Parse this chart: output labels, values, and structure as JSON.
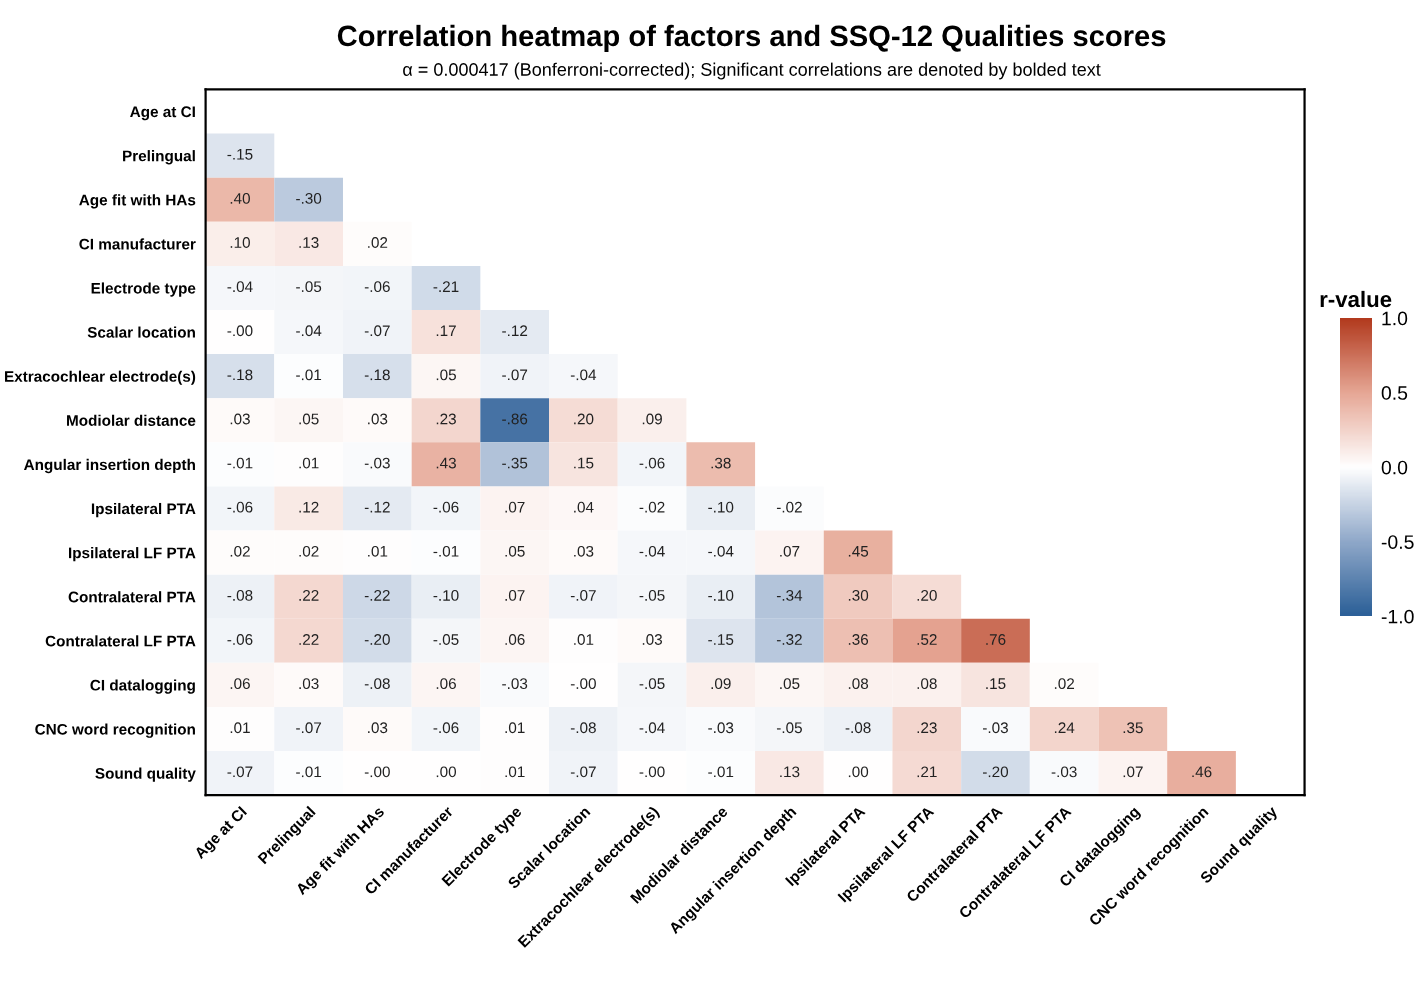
{
  "chart_data": {
    "type": "heatmap",
    "title": "Correlation heatmap of factors and SSQ-12 Qualities scores",
    "subtitle": "α = 0.000417 (Bonferroni-corrected); Significant correlations are denoted by bolded text",
    "clabel": "r-value",
    "categories": [
      "Age at CI",
      "Prelingual",
      "Age fit with HAs",
      "CI manufacturer",
      "Electrode type",
      "Scalar location",
      "Extracochlear electrode(s)",
      "Modiolar distance",
      "Angular insertion depth",
      "Ipsilateral PTA",
      "Ipsilateral LF PTA",
      "Contralateral PTA",
      "Contralateral LF PTA",
      "CI datalogging",
      "CNC word recognition",
      "Sound quality"
    ],
    "y_categories": [
      "Age at CI",
      "Prelingual",
      "Age fit with HAs",
      "CI manufacturer",
      "Electrode type",
      "Scalar location",
      "Extracochlear electrode(s)",
      "Modiolar distance",
      "Angular insertion depth",
      "Ipsilateral PTA",
      "Ipsilateral LF PTA",
      "Contralateral PTA",
      "Contralateral LF PTA",
      "CI datalogging",
      "CNC word recognition",
      "Sound quality"
    ],
    "cells": [
      [
        null,
        null,
        null,
        null,
        null,
        null,
        null,
        null,
        null,
        null,
        null,
        null,
        null,
        null,
        null,
        null
      ],
      [
        -0.15,
        null,
        null,
        null,
        null,
        null,
        null,
        null,
        null,
        null,
        null,
        null,
        null,
        null,
        null,
        null
      ],
      [
        0.4,
        -0.3,
        null,
        null,
        null,
        null,
        null,
        null,
        null,
        null,
        null,
        null,
        null,
        null,
        null,
        null
      ],
      [
        0.1,
        0.13,
        0.02,
        null,
        null,
        null,
        null,
        null,
        null,
        null,
        null,
        null,
        null,
        null,
        null,
        null
      ],
      [
        -0.04,
        -0.05,
        -0.06,
        -0.21,
        null,
        null,
        null,
        null,
        null,
        null,
        null,
        null,
        null,
        null,
        null,
        null
      ],
      [
        0,
        -0.04,
        -0.07,
        0.17,
        -0.12,
        null,
        null,
        null,
        null,
        null,
        null,
        null,
        null,
        null,
        null,
        null
      ],
      [
        -0.18,
        -0.01,
        -0.18,
        0.05,
        -0.07,
        -0.04,
        null,
        null,
        null,
        null,
        null,
        null,
        null,
        null,
        null,
        null
      ],
      [
        0.03,
        0.05,
        0.03,
        0.23,
        -0.86,
        0.2,
        0.09,
        null,
        null,
        null,
        null,
        null,
        null,
        null,
        null,
        null
      ],
      [
        -0.01,
        0.01,
        -0.03,
        0.43,
        -0.35,
        0.15,
        -0.06,
        0.38,
        null,
        null,
        null,
        null,
        null,
        null,
        null,
        null
      ],
      [
        -0.06,
        0.12,
        -0.12,
        -0.06,
        0.07,
        0.04,
        -0.02,
        -0.1,
        -0.02,
        null,
        null,
        null,
        null,
        null,
        null,
        null
      ],
      [
        0.02,
        0.02,
        0.01,
        -0.01,
        0.05,
        0.03,
        -0.04,
        -0.04,
        0.07,
        0.45,
        null,
        null,
        null,
        null,
        null,
        null
      ],
      [
        -0.08,
        0.22,
        -0.22,
        -0.1,
        0.07,
        -0.07,
        -0.05,
        -0.1,
        -0.34,
        0.3,
        0.2,
        null,
        null,
        null,
        null,
        null
      ],
      [
        -0.06,
        0.22,
        -0.2,
        -0.05,
        0.06,
        0.01,
        0.03,
        -0.15,
        -0.32,
        0.36,
        0.52,
        0.76,
        null,
        null,
        null,
        null
      ],
      [
        0.06,
        0.03,
        -0.08,
        0.06,
        -0.03,
        0,
        -0.05,
        0.09,
        0.05,
        0.08,
        0.08,
        0.15,
        0.02,
        null,
        null,
        null
      ],
      [
        0.01,
        -0.07,
        0.03,
        -0.06,
        0.01,
        -0.08,
        -0.04,
        -0.03,
        -0.05,
        -0.08,
        0.23,
        -0.03,
        0.24,
        0.35,
        null,
        null
      ],
      [
        -0.07,
        -0.01,
        0,
        0.0,
        0.01,
        -0.07,
        0,
        -0.01,
        0.13,
        0.0,
        0.21,
        -0.2,
        -0.03,
        0.07,
        0.46,
        null
      ]
    ],
    "cell_labels": [
      [
        null,
        null,
        null,
        null,
        null,
        null,
        null,
        null,
        null,
        null,
        null,
        null,
        null,
        null,
        null,
        null
      ],
      [
        "-.15",
        null,
        null,
        null,
        null,
        null,
        null,
        null,
        null,
        null,
        null,
        null,
        null,
        null,
        null,
        null
      ],
      [
        ".40",
        "-.30",
        null,
        null,
        null,
        null,
        null,
        null,
        null,
        null,
        null,
        null,
        null,
        null,
        null,
        null
      ],
      [
        ".10",
        ".13",
        ".02",
        null,
        null,
        null,
        null,
        null,
        null,
        null,
        null,
        null,
        null,
        null,
        null,
        null
      ],
      [
        "-.04",
        "-.05",
        "-.06",
        "-.21",
        null,
        null,
        null,
        null,
        null,
        null,
        null,
        null,
        null,
        null,
        null,
        null
      ],
      [
        "-.00",
        "-.04",
        "-.07",
        ".17",
        "-.12",
        null,
        null,
        null,
        null,
        null,
        null,
        null,
        null,
        null,
        null,
        null
      ],
      [
        "-.18",
        "-.01",
        "-.18",
        ".05",
        "-.07",
        "-.04",
        null,
        null,
        null,
        null,
        null,
        null,
        null,
        null,
        null,
        null
      ],
      [
        ".03",
        ".05",
        ".03",
        ".23",
        "-.86",
        ".20",
        ".09",
        null,
        null,
        null,
        null,
        null,
        null,
        null,
        null,
        null
      ],
      [
        "-.01",
        ".01",
        "-.03",
        ".43",
        "-.35",
        ".15",
        "-.06",
        ".38",
        null,
        null,
        null,
        null,
        null,
        null,
        null,
        null
      ],
      [
        "-.06",
        ".12",
        "-.12",
        "-.06",
        ".07",
        ".04",
        "-.02",
        "-.10",
        "-.02",
        null,
        null,
        null,
        null,
        null,
        null,
        null
      ],
      [
        ".02",
        ".02",
        ".01",
        "-.01",
        ".05",
        ".03",
        "-.04",
        "-.04",
        ".07",
        ".45",
        null,
        null,
        null,
        null,
        null,
        null
      ],
      [
        "-.08",
        ".22",
        "-.22",
        "-.10",
        ".07",
        "-.07",
        "-.05",
        "-.10",
        "-.34",
        ".30",
        ".20",
        null,
        null,
        null,
        null,
        null
      ],
      [
        "-.06",
        ".22",
        "-.20",
        "-.05",
        ".06",
        ".01",
        ".03",
        "-.15",
        "-.32",
        ".36",
        ".52",
        ".76",
        null,
        null,
        null,
        null
      ],
      [
        ".06",
        ".03",
        "-.08",
        ".06",
        "-.03",
        "-.00",
        "-.05",
        ".09",
        ".05",
        ".08",
        ".08",
        ".15",
        ".02",
        null,
        null,
        null
      ],
      [
        ".01",
        "-.07",
        ".03",
        "-.06",
        ".01",
        "-.08",
        "-.04",
        "-.03",
        "-.05",
        "-.08",
        ".23",
        "-.03",
        ".24",
        ".35",
        null,
        null
      ],
      [
        "-.07",
        "-.01",
        "-.00",
        ".00",
        ".01",
        "-.07",
        "-.00",
        "-.01",
        ".13",
        ".00",
        ".21",
        "-.20",
        "-.03",
        ".07",
        ".46",
        null
      ]
    ],
    "clim": [
      -1,
      1
    ],
    "cticks": [
      {
        "value": 1,
        "label": "1.0"
      },
      {
        "value": 0.5,
        "label": "0.5"
      },
      {
        "value": 0,
        "label": "0.0"
      },
      {
        "value": -0.5,
        "label": "-0.5"
      },
      {
        "value": -1,
        "label": "-1.0"
      }
    ]
  }
}
